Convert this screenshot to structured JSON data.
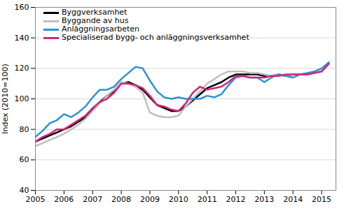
{
  "chart_data": {
    "type": "line",
    "y_label": "Index (2010=100)",
    "x": [
      2005,
      2005.25,
      2005.5,
      2005.75,
      2006,
      2006.25,
      2006.5,
      2006.75,
      2007,
      2007.25,
      2007.5,
      2007.75,
      2008,
      2008.25,
      2008.5,
      2008.75,
      2009,
      2009.25,
      2009.5,
      2009.75,
      2010,
      2010.25,
      2010.5,
      2010.75,
      2011,
      2011.25,
      2011.5,
      2011.75,
      2012,
      2012.25,
      2012.5,
      2012.75,
      2013,
      2013.25,
      2013.5,
      2013.75,
      2014,
      2014.25,
      2014.5,
      2014.75,
      2015,
      2015.25
    ],
    "series": [
      {
        "name": "Byggverksamhet",
        "color": "#000000",
        "values": [
          72,
          74,
          76,
          78,
          80,
          82,
          85,
          88,
          93,
          98,
          102,
          105,
          110,
          111,
          109,
          106,
          101,
          96,
          94,
          92,
          92,
          95,
          99,
          103,
          107,
          109,
          111,
          114,
          116,
          116,
          116,
          116,
          115,
          115,
          116,
          115,
          116,
          116,
          116,
          117,
          118,
          123
        ]
      },
      {
        "name": "Byggande av hus",
        "color": "#bfbfbf",
        "values": [
          69,
          71,
          73,
          75,
          77,
          80,
          83,
          87,
          92,
          97,
          102,
          106,
          111,
          110,
          108,
          104,
          91,
          89,
          88,
          88,
          89,
          95,
          100,
          105,
          110,
          113,
          116,
          118,
          118,
          118,
          117,
          117,
          116,
          115,
          116,
          115,
          116,
          116,
          116,
          117,
          118,
          123
        ]
      },
      {
        "name": "Anläggningsarbeten",
        "color": "#2a93d5",
        "values": [
          75,
          79,
          84,
          86,
          90,
          88,
          91,
          95,
          101,
          106,
          106,
          108,
          113,
          117,
          121,
          120,
          112,
          105,
          101,
          100,
          101,
          100,
          100,
          100,
          102,
          101,
          103,
          109,
          114,
          115,
          114,
          114,
          111,
          114,
          116,
          115,
          114,
          116,
          117,
          118,
          120,
          124
        ]
      },
      {
        "name": "Specialiserad bygg- och anläggningsverksamhet",
        "color": "#d6247e",
        "values": [
          72,
          75,
          77,
          80,
          80,
          83,
          86,
          89,
          94,
          98,
          100,
          104,
          110,
          110,
          109,
          107,
          102,
          96,
          95,
          93,
          92,
          97,
          104,
          108,
          106,
          107,
          108,
          111,
          115,
          115,
          114,
          114,
          114,
          115,
          115,
          116,
          116,
          116,
          116,
          117,
          118,
          123
        ]
      }
    ],
    "xlim": [
      2005,
      2015.5
    ],
    "xticks": [
      2005,
      2006,
      2007,
      2008,
      2009,
      2010,
      2011,
      2012,
      2013,
      2014,
      2015
    ],
    "ylim": [
      40,
      160
    ],
    "yticks": [
      40,
      60,
      80,
      100,
      120,
      140,
      160
    ],
    "grid": true,
    "legend": "top-left"
  }
}
